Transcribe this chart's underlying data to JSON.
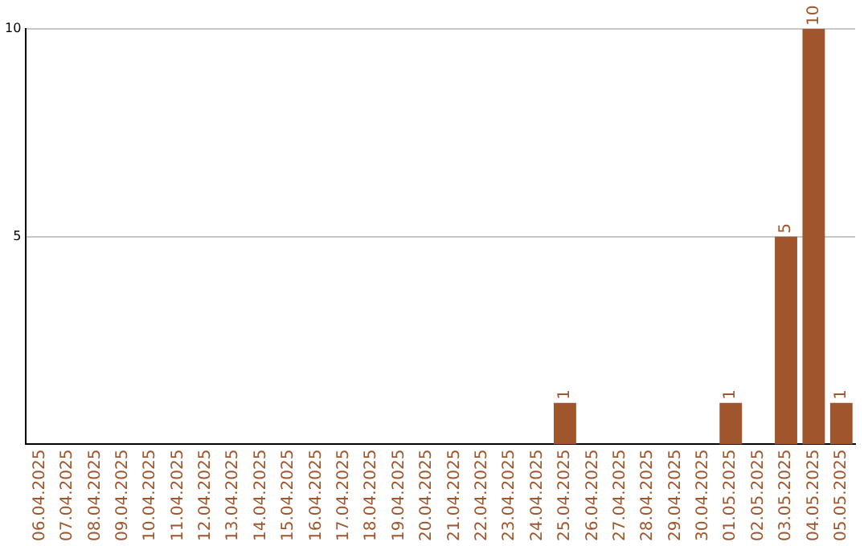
{
  "chart_data": {
    "type": "bar",
    "categories": [
      "06.04.2025",
      "07.04.2025",
      "08.04.2025",
      "09.04.2025",
      "10.04.2025",
      "11.04.2025",
      "12.04.2025",
      "13.04.2025",
      "14.04.2025",
      "15.04.2025",
      "16.04.2025",
      "17.04.2025",
      "18.04.2025",
      "19.04.2025",
      "20.04.2025",
      "21.04.2025",
      "22.04.2025",
      "23.04.2025",
      "24.04.2025",
      "25.04.2025",
      "26.04.2025",
      "27.04.2025",
      "28.04.2025",
      "29.04.2025",
      "30.04.2025",
      "01.05.2025",
      "02.05.2025",
      "03.05.2025",
      "04.05.2025",
      "05.05.2025"
    ],
    "values": [
      0,
      0,
      0,
      0,
      0,
      0,
      0,
      0,
      0,
      0,
      0,
      0,
      0,
      0,
      0,
      0,
      0,
      0,
      0,
      1,
      0,
      0,
      0,
      0,
      0,
      1,
      0,
      5,
      10,
      1
    ],
    "value_labels": [
      null,
      null,
      null,
      null,
      null,
      null,
      null,
      null,
      null,
      null,
      null,
      null,
      null,
      null,
      null,
      null,
      null,
      null,
      null,
      "1",
      null,
      null,
      null,
      null,
      null,
      "1",
      null,
      "5",
      "10",
      "1"
    ],
    "color": "#a0562c",
    "ylim": [
      0,
      10
    ],
    "yticks": [
      5,
      10
    ],
    "grid": "y",
    "legend": false
  }
}
